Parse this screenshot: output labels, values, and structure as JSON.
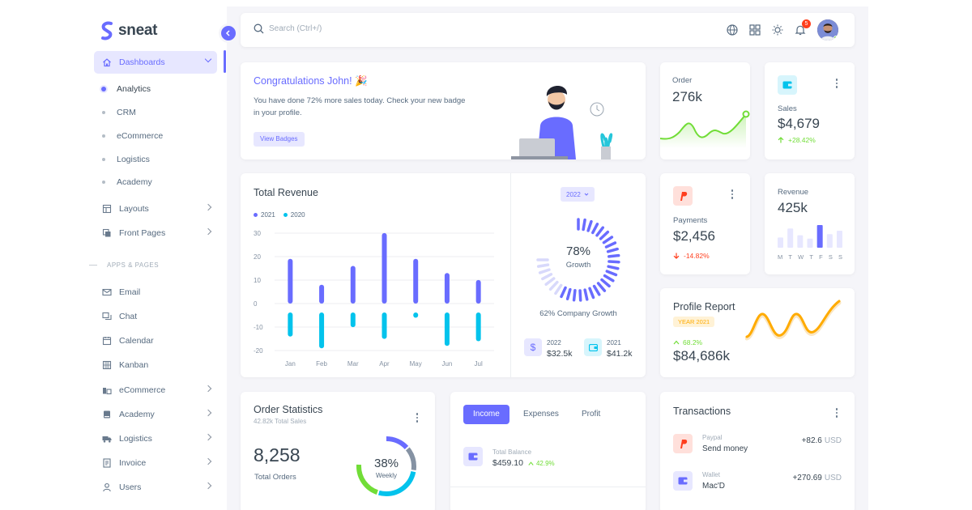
{
  "brand": {
    "name": "sneat",
    "accent": "#696cff"
  },
  "sidebar": {
    "dashboards_label": "Dashboards",
    "sub_items": [
      "Analytics",
      "CRM",
      "eCommerce",
      "Logistics",
      "Academy"
    ],
    "layouts_label": "Layouts",
    "front_pages_label": "Front Pages",
    "section_header": "APPS & PAGES",
    "apps": [
      "Email",
      "Chat",
      "Calendar",
      "Kanban",
      "eCommerce",
      "Academy",
      "Logistics",
      "Invoice",
      "Users"
    ]
  },
  "navbar": {
    "search_placeholder": "Search (Ctrl+/)",
    "notification_count": "5"
  },
  "welcome": {
    "title": "Congratulations John! 🎉",
    "text": "You have done 72% more sales today. Check your new badge in your profile.",
    "button": "View Badges"
  },
  "order_card": {
    "label": "Order",
    "value": "276k"
  },
  "sales_card": {
    "label": "Sales",
    "value": "$4,679",
    "change": "+28.42%"
  },
  "revenue_chart": {
    "title": "Total Revenue",
    "legend": [
      "2021",
      "2020"
    ],
    "year_button": "2022",
    "growth_percent": "78%",
    "growth_label": "Growth",
    "company_growth": "62% Company Growth",
    "stat_2022_year": "2022",
    "stat_2022_value": "$32.5k",
    "stat_2021_year": "2021",
    "stat_2021_value": "$41.2k"
  },
  "chart_data": {
    "type": "bar",
    "categories": [
      "Jan",
      "Feb",
      "Mar",
      "Apr",
      "May",
      "Jun",
      "Jul"
    ],
    "series": [
      {
        "name": "2021",
        "values": [
          18,
          7,
          15,
          29,
          18,
          12,
          9
        ]
      },
      {
        "name": "2020",
        "values": [
          -13,
          -18,
          -9,
          -14,
          -5,
          -17,
          -15
        ]
      }
    ],
    "yticks": [
      30,
      20,
      10,
      0,
      -10,
      -20
    ],
    "ylim": [
      -20,
      30
    ],
    "colors": [
      "#696cff",
      "#03c3ec"
    ]
  },
  "payments_card": {
    "label": "Payments",
    "value": "$2,456",
    "change": "-14.82%"
  },
  "revenue_card": {
    "label": "Revenue",
    "value": "425k",
    "days": [
      "M",
      "T",
      "W",
      "T",
      "F",
      "S",
      "S"
    ],
    "bars": [
      0.45,
      0.85,
      0.55,
      0.4,
      1.0,
      0.6,
      0.75
    ]
  },
  "profile_report": {
    "title": "Profile Report",
    "badge": "YEAR 2021",
    "change": "68.2%",
    "value": "$84,686k"
  },
  "order_stats": {
    "title": "Order Statistics",
    "subtitle": "42.82k Total Sales",
    "value": "8,258",
    "label": "Total Orders",
    "donut_percent": "38%",
    "donut_label": "Weekly"
  },
  "income_tabs": {
    "tabs": [
      "Income",
      "Expenses",
      "Profit"
    ],
    "balance_label": "Total Balance",
    "balance_value": "$459.10",
    "balance_change": "42.9%"
  },
  "transactions": {
    "title": "Transactions",
    "items": [
      {
        "source": "Paypal",
        "desc": "Send money",
        "amount": "+82.6",
        "currency": "USD"
      },
      {
        "source": "Wallet",
        "desc": "Mac'D",
        "amount": "+270.69",
        "currency": "USD"
      }
    ]
  }
}
